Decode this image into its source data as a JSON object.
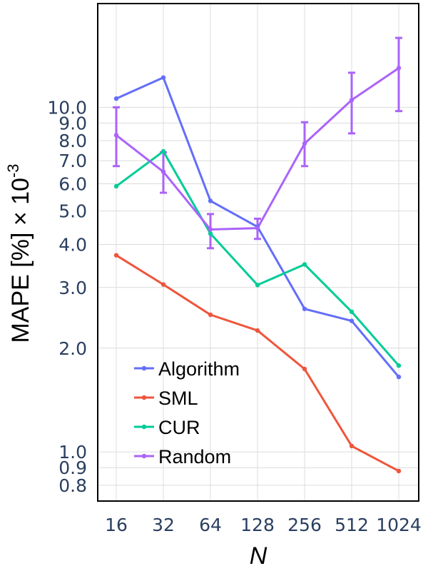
{
  "chart_data": {
    "type": "line",
    "xlabel": "N",
    "ylabel": {
      "main": "MAPE [%] × 10",
      "exp": "-3"
    },
    "x_categories": [
      "16",
      "32",
      "64",
      "128",
      "256",
      "512",
      "1024"
    ],
    "yscale": "log",
    "ylim": [
      0.72,
      20
    ],
    "y_ticks": [
      0.8,
      0.9,
      1.0,
      2.0,
      3.0,
      4.0,
      5.0,
      6.0,
      7.0,
      8.0,
      9.0,
      10.0
    ],
    "y_tick_labels": [
      "0.8",
      "0.9",
      "1.0",
      "2.0",
      "3.0",
      "4.0",
      "5.0",
      "6.0",
      "7.0",
      "8.0",
      "9.0",
      "10.0"
    ],
    "grid": true,
    "legend_position": "bottom-left",
    "series": [
      {
        "name": "Algorithm",
        "color": "#636efa",
        "values": [
          10.6,
          12.2,
          5.35,
          4.5,
          2.6,
          2.4,
          1.65
        ]
      },
      {
        "name": "SML",
        "color": "#ef553b",
        "values": [
          3.72,
          3.06,
          2.5,
          2.25,
          1.74,
          1.04,
          0.88
        ]
      },
      {
        "name": "CUR",
        "color": "#00cc96",
        "values": [
          5.9,
          7.45,
          4.3,
          3.05,
          3.5,
          2.55,
          1.78
        ]
      },
      {
        "name": "Random",
        "color": "#ab63fa",
        "values": [
          8.3,
          6.5,
          4.42,
          4.46,
          7.85,
          10.5,
          13.0
        ],
        "error_low": [
          6.75,
          5.65,
          3.9,
          4.15,
          6.75,
          8.4,
          9.75
        ],
        "error_high": [
          10.0,
          7.4,
          4.9,
          4.75,
          9.05,
          12.6,
          15.9
        ]
      }
    ]
  }
}
